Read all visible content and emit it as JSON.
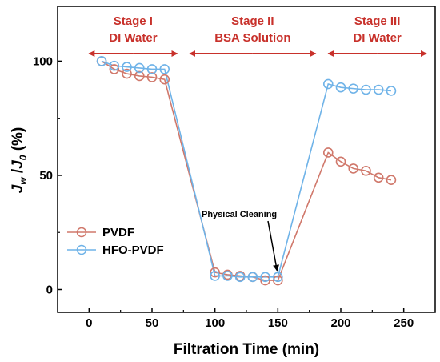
{
  "chart_data": {
    "type": "scatter",
    "xlabel": "Filtration Time (min)",
    "ylabel_main": "J",
    "ylabel_sub1": "w",
    "ylabel_slash": " /",
    "ylabel_j0": "J",
    "ylabel_sub2": "0",
    "ylabel_unit": " (%)",
    "xlim": [
      -25,
      275
    ],
    "ylim": [
      -10,
      124
    ],
    "xticks": [
      0,
      50,
      100,
      150,
      200,
      250
    ],
    "yticks": [
      0,
      50,
      100
    ],
    "colors": {
      "PVDF": "#d0786b",
      "HFO-PVDF": "#6fb3e8",
      "stage": "#c8312b"
    },
    "series": [
      {
        "name": "PVDF",
        "x": [
          10,
          20,
          30,
          40,
          50,
          60,
          100,
          110,
          120,
          130,
          140,
          150,
          190,
          200,
          210,
          220,
          230,
          240
        ],
        "y": [
          100,
          96.5,
          94.5,
          93.5,
          93,
          92,
          7.5,
          6.5,
          6,
          5.5,
          4,
          4,
          60,
          56,
          53,
          52,
          49,
          48
        ]
      },
      {
        "name": "HFO-PVDF",
        "x": [
          10,
          20,
          30,
          40,
          50,
          60,
          100,
          110,
          120,
          130,
          140,
          150,
          190,
          200,
          210,
          220,
          230,
          240
        ],
        "y": [
          100,
          98,
          97.5,
          97,
          96.5,
          96.5,
          6,
          6,
          5.5,
          5.5,
          5.5,
          5.5,
          90,
          88.5,
          88,
          87.5,
          87.5,
          87
        ]
      }
    ],
    "stages": [
      {
        "name": "Stage I",
        "subtitle": "DI Water",
        "x_start": 0,
        "x_end": 70
      },
      {
        "name": "Stage II",
        "subtitle": "BSA Solution",
        "x_start": 80,
        "x_end": 180
      },
      {
        "name": "Stage III",
        "subtitle": "DI Water",
        "x_start": 190,
        "x_end": 268
      }
    ],
    "annotation": {
      "text": "Physical Cleaning",
      "points_to_x": 150,
      "points_to_y": 5.5
    },
    "legend": {
      "position": "lower-left",
      "entries": [
        "PVDF",
        "HFO-PVDF"
      ]
    }
  }
}
